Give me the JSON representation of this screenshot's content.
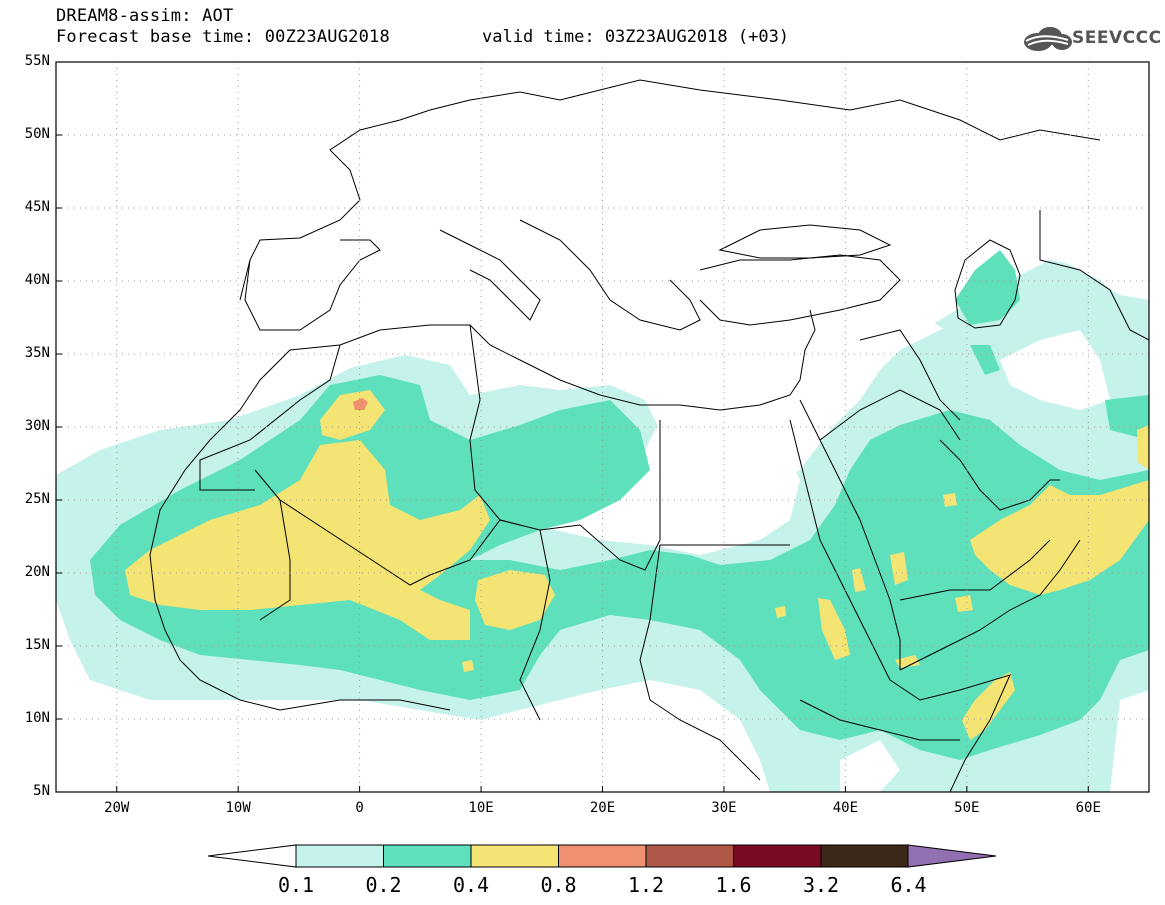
{
  "header": {
    "title": "DREAM8-assim: AOT",
    "base_time": "Forecast base time: 00Z23AUG2018",
    "valid_time": "valid time: 03Z23AUG2018 (+03)",
    "logo_text": "SEEVCCC"
  },
  "axes": {
    "lat_labels": [
      "55N",
      "50N",
      "45N",
      "40N",
      "35N",
      "30N",
      "25N",
      "20N",
      "15N",
      "10N",
      "5N"
    ],
    "lon_labels": [
      "20W",
      "10W",
      "0",
      "10E",
      "20E",
      "30E",
      "40E",
      "50E",
      "60E"
    ],
    "lon_range": [
      -25,
      65
    ],
    "lat_range": [
      5,
      55
    ]
  },
  "colorbar": {
    "labels": [
      "0.1",
      "0.2",
      "0.4",
      "0.8",
      "1.2",
      "1.6",
      "3.2",
      "6.4"
    ],
    "colors": [
      "#c6f2ec",
      "#5ee0bc",
      "#f4e474",
      "#ee9070",
      "#b05848",
      "#7a0a24",
      "#3c2818",
      "#9070b0"
    ]
  },
  "colors": {
    "level_01": "#c6f2ec",
    "level_02": "#5ee0bc",
    "level_04": "#f4e474",
    "level_08": "#ee9070",
    "border": "#000000"
  }
}
